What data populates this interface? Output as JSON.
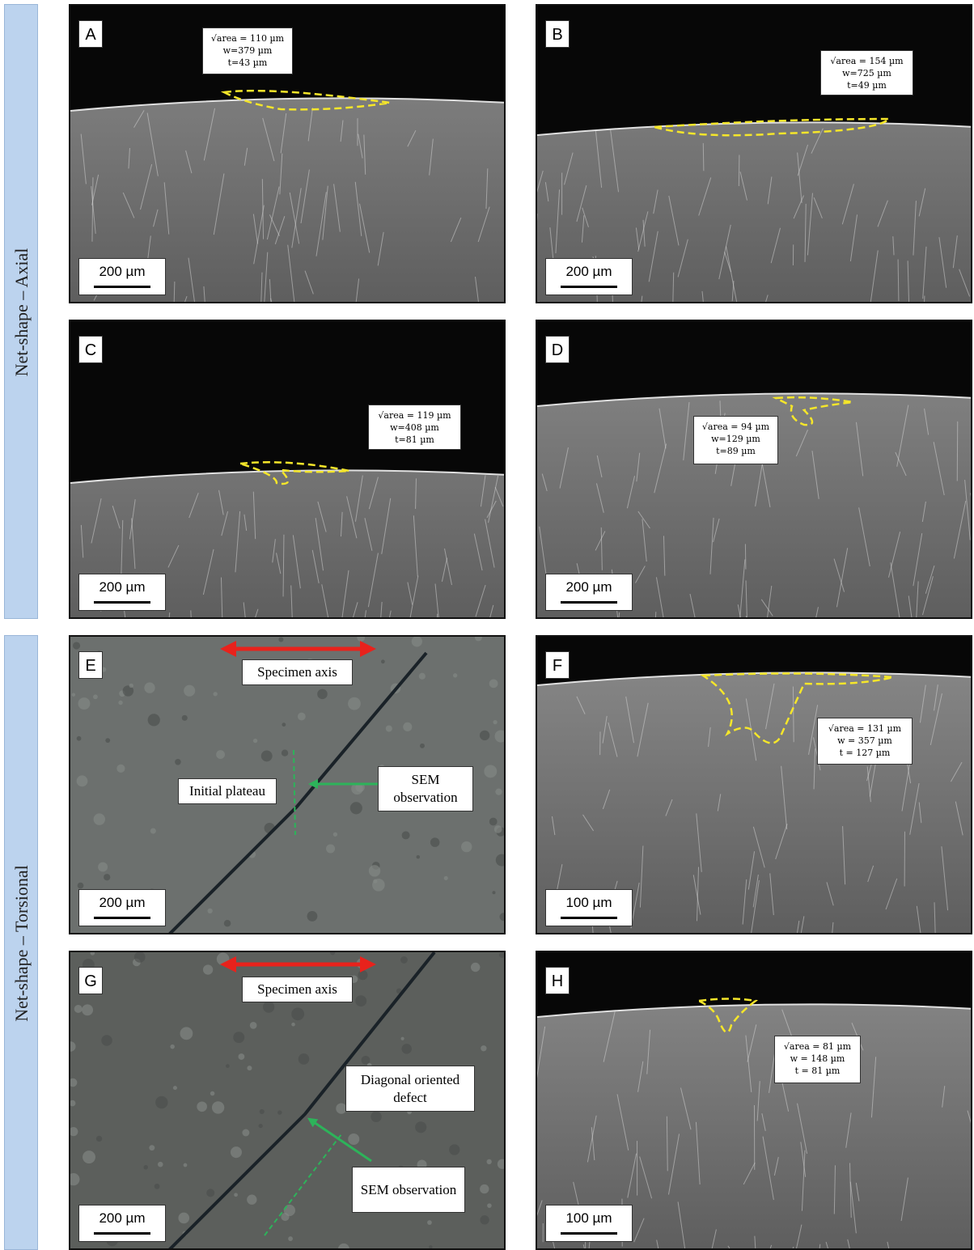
{
  "row_groups": [
    {
      "label": "Net-shape – Axial"
    },
    {
      "label": "Net-shape – Torsional"
    }
  ],
  "panels": [
    {
      "letter": "A",
      "scale_bar": "200 µm",
      "annotation": [
        "√area = 110 µm",
        "w=379 µm",
        "t=43 µm"
      ]
    },
    {
      "letter": "B",
      "scale_bar": "200 µm",
      "annotation": [
        "√area = 154 µm",
        "w=725 µm",
        "t=49 µm"
      ]
    },
    {
      "letter": "C",
      "scale_bar": "200 µm",
      "annotation": [
        "√area = 119 µm",
        "w=408 µm",
        "t=81 µm"
      ]
    },
    {
      "letter": "D",
      "scale_bar": "200 µm",
      "annotation": [
        "√area = 94 µm",
        "w=129 µm",
        "t=89 µm"
      ]
    },
    {
      "letter": "E",
      "scale_bar": "200 µm",
      "labels": [
        "Specimen axis",
        "Initial plateau",
        "SEM observation"
      ]
    },
    {
      "letter": "F",
      "scale_bar": "100 µm",
      "annotation": [
        "√area = 131 µm",
        "w = 357 µm",
        "t = 127 µm"
      ]
    },
    {
      "letter": "G",
      "scale_bar": "200 µm",
      "labels": [
        "Specimen axis",
        "Diagonal oriented defect",
        "SEM observation"
      ]
    },
    {
      "letter": "H",
      "scale_bar": "100 µm",
      "annotation": [
        "√area = 81 µm",
        "w = 148 µm",
        "t = 81 µm"
      ]
    }
  ]
}
